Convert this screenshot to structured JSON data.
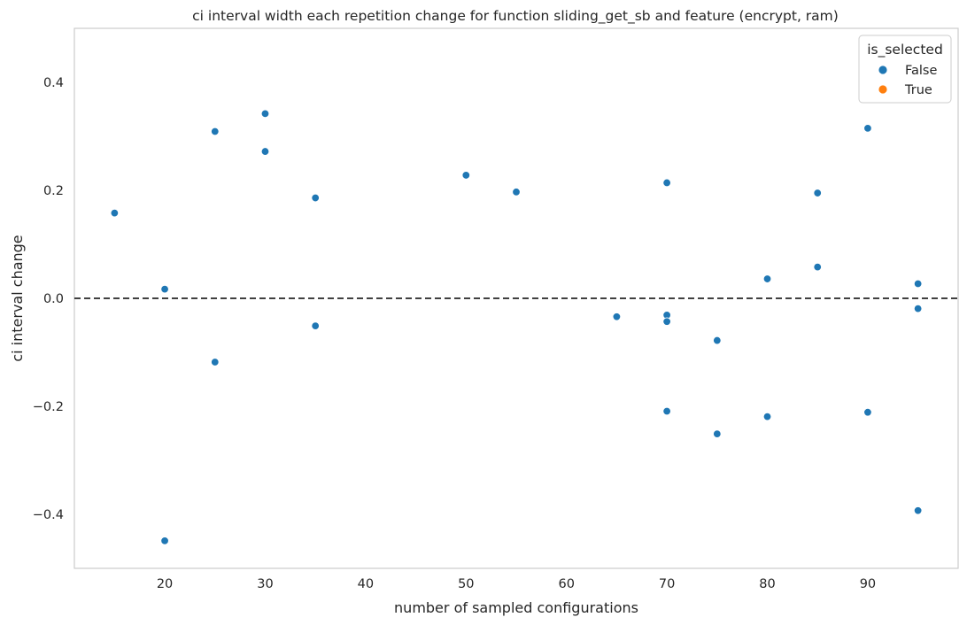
{
  "chart_data": {
    "type": "scatter",
    "title": "ci interval width each repetition change for function sliding_get_sb and feature (encrypt, ram)",
    "xlabel": "number of sampled configurations",
    "ylabel": "ci interval change",
    "xlim": [
      11,
      99
    ],
    "ylim": [
      -0.5,
      0.5
    ],
    "x_ticks": [
      20,
      30,
      40,
      50,
      60,
      70,
      80,
      90
    ],
    "y_ticks": [
      -0.4,
      -0.2,
      0.0,
      0.2,
      0.4
    ],
    "y_tick_labels": [
      "−0.4",
      "−0.2",
      "0.0",
      "0.2",
      "0.4"
    ],
    "grid": false,
    "reference_line": {
      "y": 0.0,
      "style": "dashed",
      "color": "#000000"
    },
    "legend": {
      "title": "is_selected",
      "placement": "top-right",
      "entries": [
        {
          "label": "False",
          "color": "#1f77b4"
        },
        {
          "label": "True",
          "color": "#ff7f0e"
        }
      ]
    },
    "series": [
      {
        "name": "False",
        "color": "#1f77b4",
        "points": [
          [
            15,
            0.158
          ],
          [
            20,
            0.017
          ],
          [
            20,
            -0.449
          ],
          [
            25,
            0.309
          ],
          [
            25,
            -0.118
          ],
          [
            30,
            0.342
          ],
          [
            30,
            0.272
          ],
          [
            35,
            0.186
          ],
          [
            35,
            -0.051
          ],
          [
            50,
            0.228
          ],
          [
            55,
            0.197
          ],
          [
            65,
            -0.034
          ],
          [
            70,
            0.214
          ],
          [
            70,
            -0.031
          ],
          [
            70,
            -0.043
          ],
          [
            70,
            -0.209
          ],
          [
            75,
            -0.078
          ],
          [
            75,
            -0.251
          ],
          [
            80,
            0.036
          ],
          [
            80,
            -0.219
          ],
          [
            85,
            0.195
          ],
          [
            85,
            0.058
          ],
          [
            90,
            0.315
          ],
          [
            90,
            -0.211
          ],
          [
            95,
            0.027
          ],
          [
            95,
            -0.019
          ],
          [
            95,
            -0.393
          ]
        ]
      },
      {
        "name": "True",
        "color": "#ff7f0e",
        "points": []
      }
    ]
  }
}
